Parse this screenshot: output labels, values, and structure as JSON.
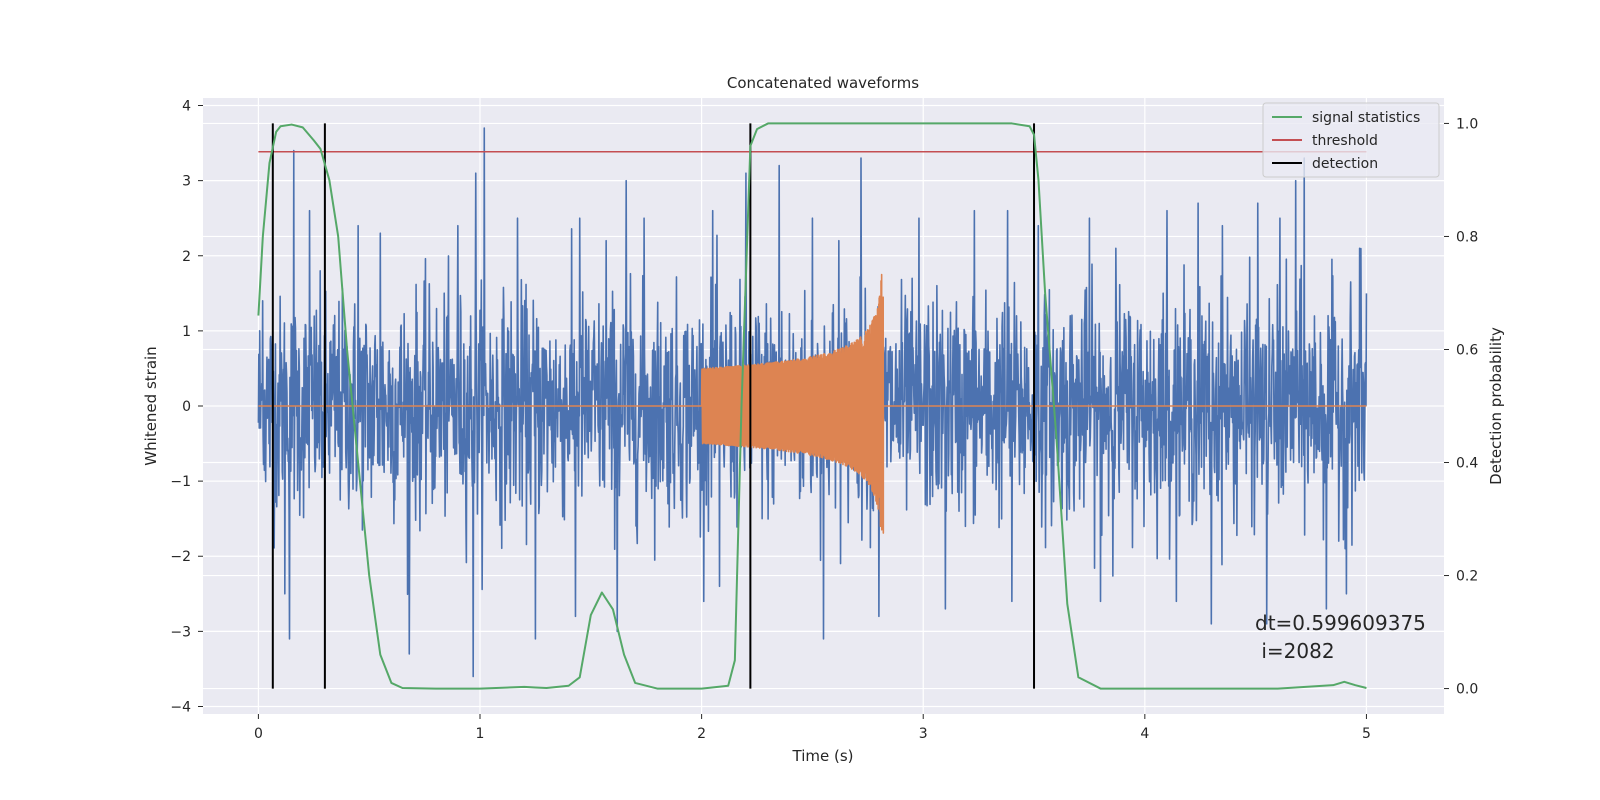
{
  "chart_data": {
    "type": "line",
    "title": "Concatenated waveforms",
    "xlabel": "Time (s)",
    "ylabel": "Whitened strain",
    "ylabel_right": "Detection probability",
    "xlim": [
      -0.25,
      5.35
    ],
    "ylim": [
      -4.1,
      4.1
    ],
    "ylim_right": [
      -0.045,
      1.045
    ],
    "xticks": [
      "0",
      "1",
      "2",
      "3",
      "4",
      "5"
    ],
    "yticks": [
      "4",
      "3",
      "2",
      "1",
      "0",
      "−1",
      "−2",
      "−3",
      "−4"
    ],
    "yticks_right": [
      "1.0",
      "0.8",
      "0.6",
      "0.4",
      "0.2",
      "0.0"
    ],
    "grid": true,
    "legend_position": "top-right",
    "colors": {
      "background": "#eaeaf2",
      "grid": "#ffffff",
      "noise": "#4c72b0",
      "chirp": "#dd8452",
      "signal_statistics": "#55a868",
      "threshold": "#c44e52",
      "detection": "#000000"
    },
    "series": [
      {
        "name": "signal statistics",
        "axis": "right",
        "x": [
          0.0,
          0.02,
          0.05,
          0.08,
          0.1,
          0.15,
          0.2,
          0.25,
          0.28,
          0.32,
          0.36,
          0.4,
          0.45,
          0.5,
          0.55,
          0.6,
          0.65,
          0.8,
          1.0,
          1.2,
          1.25,
          1.3,
          1.4,
          1.45,
          1.5,
          1.55,
          1.6,
          1.65,
          1.7,
          1.8,
          2.0,
          2.12,
          2.15,
          2.18,
          2.22,
          2.25,
          2.3,
          2.5,
          3.0,
          3.4,
          3.48,
          3.5,
          3.52,
          3.55,
          3.6,
          3.65,
          3.7,
          3.8,
          4.2,
          4.6,
          4.85,
          4.9,
          4.95,
          5.0
        ],
        "y": [
          0.66,
          0.8,
          0.93,
          0.985,
          0.995,
          0.998,
          0.993,
          0.97,
          0.955,
          0.9,
          0.8,
          0.6,
          0.4,
          0.2,
          0.06,
          0.01,
          0.001,
          0.0,
          0.0,
          0.003,
          0.002,
          0.001,
          0.005,
          0.02,
          0.13,
          0.17,
          0.14,
          0.06,
          0.01,
          0.0,
          0.0,
          0.005,
          0.05,
          0.5,
          0.96,
          0.99,
          1.0,
          1.0,
          1.0,
          1.0,
          0.995,
          0.98,
          0.9,
          0.7,
          0.45,
          0.15,
          0.02,
          0.0,
          0.0,
          0.0,
          0.006,
          0.012,
          0.006,
          0.001
        ]
      },
      {
        "name": "threshold",
        "axis": "right",
        "x": [
          0.0,
          5.0
        ],
        "y": [
          0.95,
          0.95
        ]
      }
    ],
    "noise": {
      "axis": "left",
      "x_range": [
        0.0,
        5.0
      ],
      "peaks": [
        {
          "x": 0.02,
          "y": 1.4
        },
        {
          "x": 0.16,
          "y": 3.4
        },
        {
          "x": 0.23,
          "y": 2.6
        },
        {
          "x": 0.12,
          "y": -2.5
        },
        {
          "x": 0.14,
          "y": -3.1
        },
        {
          "x": 0.3,
          "y": -2.0
        },
        {
          "x": 0.45,
          "y": 2.4
        },
        {
          "x": 0.55,
          "y": 2.3
        },
        {
          "x": 0.68,
          "y": -3.3
        },
        {
          "x": 0.9,
          "y": 2.4
        },
        {
          "x": 0.98,
          "y": 3.1
        },
        {
          "x": 1.02,
          "y": 3.7
        },
        {
          "x": 0.97,
          "y": -3.6
        },
        {
          "x": 1.17,
          "y": 2.5
        },
        {
          "x": 1.25,
          "y": -3.1
        },
        {
          "x": 1.45,
          "y": 2.5
        },
        {
          "x": 1.57,
          "y": 2.2
        },
        {
          "x": 1.43,
          "y": -2.8
        },
        {
          "x": 1.66,
          "y": 3.0
        },
        {
          "x": 1.74,
          "y": 2.5
        },
        {
          "x": 1.62,
          "y": -3.0
        },
        {
          "x": 2.05,
          "y": 2.6
        },
        {
          "x": 2.2,
          "y": 3.1
        },
        {
          "x": 2.08,
          "y": -2.4
        },
        {
          "x": 2.35,
          "y": 3.2
        },
        {
          "x": 2.5,
          "y": 2.5
        },
        {
          "x": 2.62,
          "y": 2.2
        },
        {
          "x": 2.72,
          "y": 3.3
        },
        {
          "x": 2.55,
          "y": -3.1
        },
        {
          "x": 2.8,
          "y": -2.8
        },
        {
          "x": 2.98,
          "y": 2.5
        },
        {
          "x": 3.1,
          "y": -2.7
        },
        {
          "x": 3.23,
          "y": 2.6
        },
        {
          "x": 3.38,
          "y": 2.6
        },
        {
          "x": 3.52,
          "y": 2.4
        },
        {
          "x": 3.4,
          "y": -2.6
        },
        {
          "x": 3.75,
          "y": 2.5
        },
        {
          "x": 3.87,
          "y": 2.1
        },
        {
          "x": 3.8,
          "y": -2.6
        },
        {
          "x": 4.1,
          "y": 2.6
        },
        {
          "x": 4.24,
          "y": 2.7
        },
        {
          "x": 4.3,
          "y": -2.9
        },
        {
          "x": 4.35,
          "y": 2.4
        },
        {
          "x": 4.51,
          "y": 2.7
        },
        {
          "x": 4.61,
          "y": 2.5
        },
        {
          "x": 4.68,
          "y": 3.0
        },
        {
          "x": 4.72,
          "y": 3.3
        },
        {
          "x": 4.55,
          "y": -2.9
        },
        {
          "x": 4.82,
          "y": -2.7
        },
        {
          "x": 4.91,
          "y": -2.5
        },
        {
          "x": 4.97,
          "y": 2.1
        },
        {
          "x": 5.0,
          "y": 1.5
        }
      ]
    },
    "chirp": {
      "axis": "left",
      "x_range": [
        2.0,
        2.82
      ],
      "start_amplitude": 0.5,
      "peak_amplitude_pos": 2.0,
      "peak_amplitude_neg": -1.7
    },
    "detections": [
      0.065,
      0.3,
      2.22,
      3.5
    ],
    "annotation": {
      "dt": "dt=0.599609375",
      "i": " i=2082"
    }
  }
}
